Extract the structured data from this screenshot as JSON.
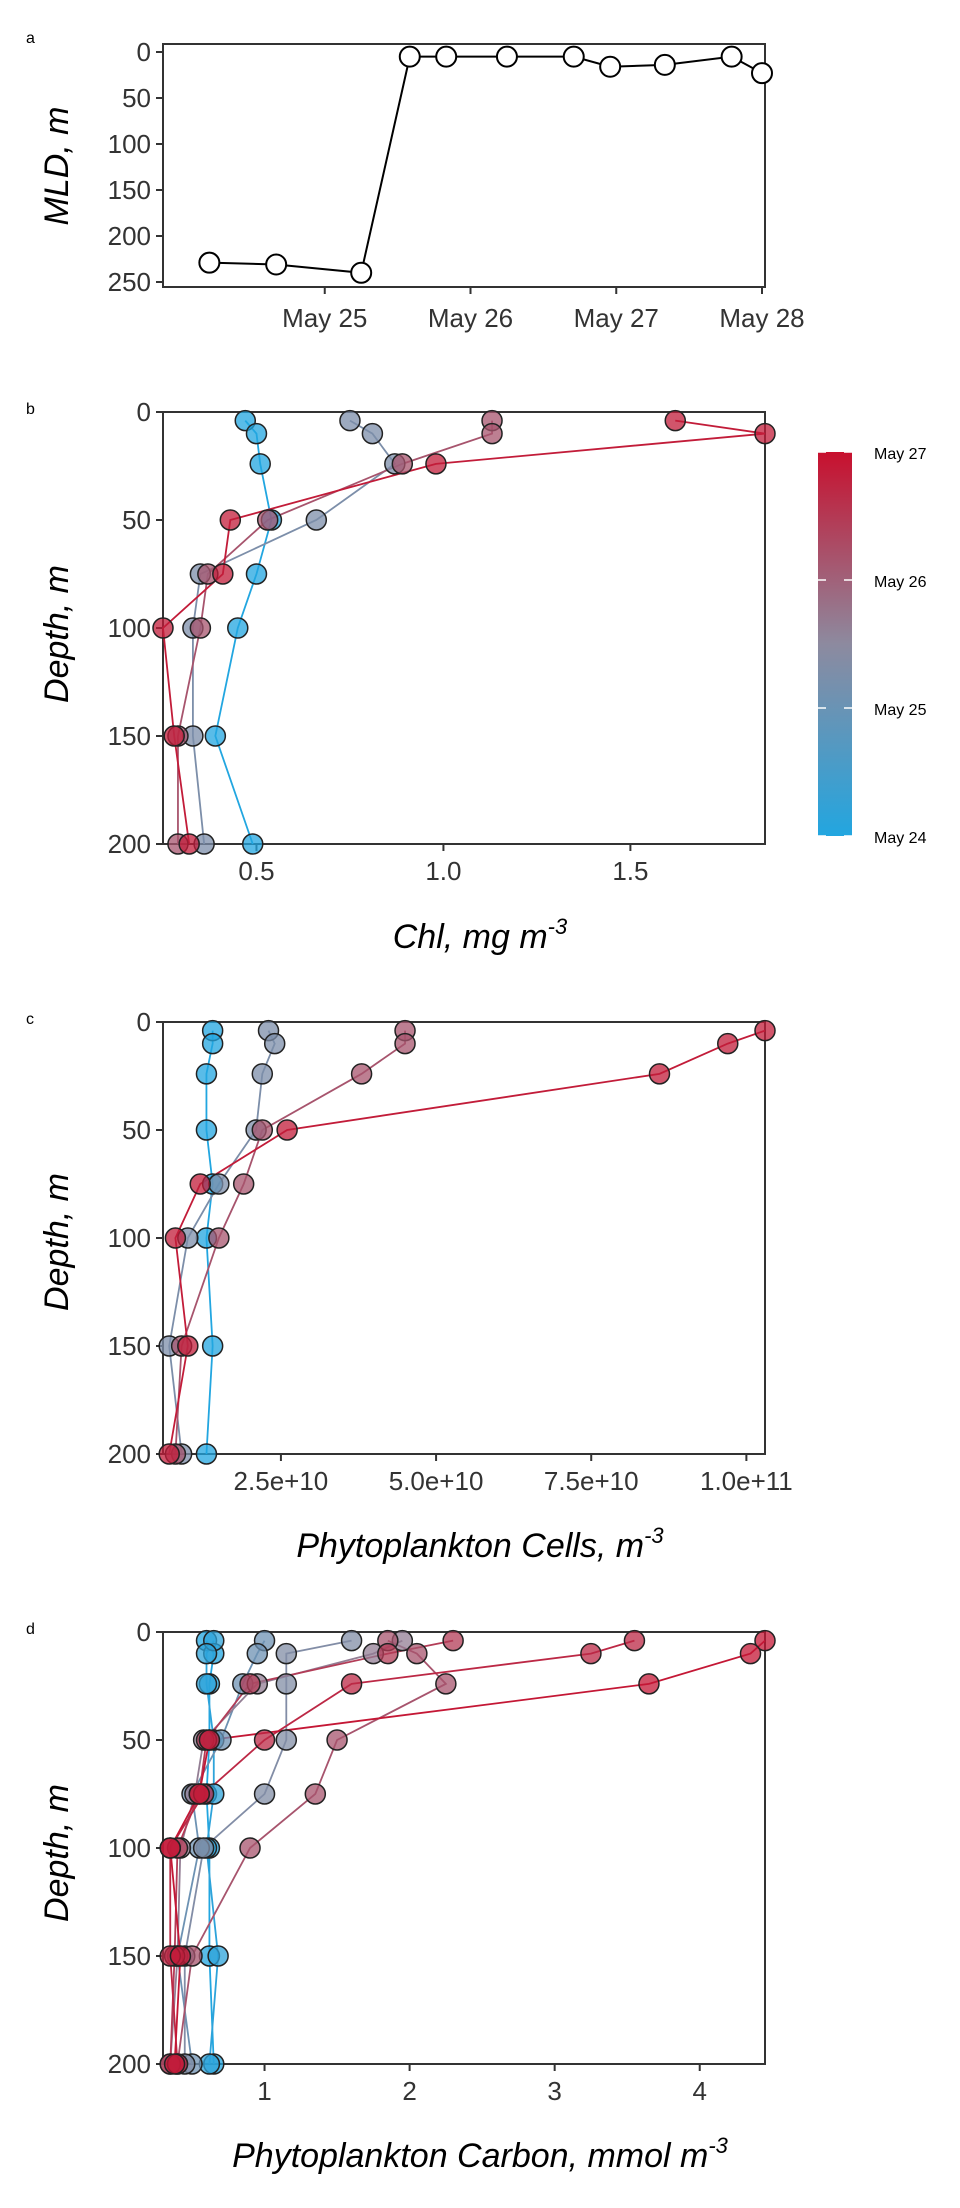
{
  "colors": {
    "early": "#22a6e0",
    "mid": "#8d8a9f",
    "late": "#c8102e",
    "mld_line": "#000000",
    "mld_marker_fill": "#ffffff"
  },
  "colorbar": {
    "labels": [
      "May 27",
      "May 26",
      "May 25",
      "May 24"
    ],
    "range": [
      "May 24",
      "May 27"
    ]
  },
  "chart_data": [
    {
      "panel_label": "a",
      "type": "line",
      "xlabel": "",
      "ylabel": "MLD, m",
      "x_ticks": [
        "May 25",
        "May 26",
        "May 27",
        "May 28"
      ],
      "y_ticks": [
        "0",
        "50",
        "100",
        "150",
        "200",
        "250"
      ],
      "xlim": [
        "2014-05-24 00:00",
        "2014-05-28 00:00"
      ],
      "ylim": [
        0,
        250
      ],
      "y_reversed": true,
      "x_date_ticks": [
        "May 25",
        "May 26",
        "May 27",
        "May 28"
      ],
      "series": [
        {
          "points": [
            [
              "May 24 05:00",
              229
            ],
            [
              "May 24 16:00",
              231
            ],
            [
              "May 25 06:00",
              240
            ],
            [
              "May 25 14:00",
              5
            ],
            [
              "May 25 20:00",
              5
            ],
            [
              "May 26 06:00",
              5
            ],
            [
              "May 26 17:00",
              5
            ],
            [
              "May 26 23:00",
              16
            ],
            [
              "May 27 08:00",
              14
            ],
            [
              "May 27 19:00",
              5
            ],
            [
              "May 28 00:00",
              23
            ]
          ]
        }
      ]
    },
    {
      "panel_label": "b",
      "type": "scatter",
      "xlabel": "Chl, mg m",
      "xlabel_sup": "-3",
      "ylabel": "Depth, m",
      "x_ticks": [
        "0.5",
        "1.0",
        "1.5"
      ],
      "y_ticks": [
        "0",
        "50",
        "100",
        "150",
        "200"
      ],
      "xlim": [
        0.25,
        1.86
      ],
      "ylim": [
        0,
        200
      ],
      "y_reversed": true,
      "series": [
        {
          "t": 0.0,
          "points": [
            [
              0.47,
              4
            ],
            [
              0.5,
              10
            ],
            [
              0.51,
              24
            ],
            [
              0.54,
              50
            ],
            [
              0.5,
              75
            ],
            [
              0.45,
              100
            ],
            [
              0.39,
              150
            ],
            [
              0.49,
              200
            ]
          ]
        },
        {
          "t": 0.42,
          "points": [
            [
              0.75,
              4
            ],
            [
              0.81,
              10
            ],
            [
              0.87,
              24
            ],
            [
              0.66,
              50
            ],
            [
              0.35,
              75
            ],
            [
              0.33,
              100
            ],
            [
              0.33,
              150
            ],
            [
              0.36,
              200
            ]
          ]
        },
        {
          "t": 0.72,
          "points": [
            [
              1.13,
              4
            ],
            [
              1.13,
              10
            ],
            [
              0.89,
              24
            ],
            [
              0.53,
              50
            ],
            [
              0.37,
              75
            ],
            [
              0.35,
              100
            ],
            [
              0.29,
              150
            ],
            [
              0.29,
              200
            ]
          ]
        },
        {
          "t": 0.95,
          "points": [
            [
              1.62,
              4
            ],
            [
              1.86,
              10
            ],
            [
              0.98,
              24
            ],
            [
              0.43,
              50
            ],
            [
              0.41,
              75
            ],
            [
              0.25,
              100
            ],
            [
              0.28,
              150
            ],
            [
              0.32,
              200
            ]
          ]
        }
      ]
    },
    {
      "panel_label": "c",
      "type": "scatter",
      "xlabel": "Phytoplankton Cells, m",
      "xlabel_sup": "-3",
      "ylabel": "Depth, m",
      "x_ticks": [
        "2.5e+10",
        "5.0e+10",
        "7.5e+10",
        "1.0e+11"
      ],
      "x_tick_values": [
        25000000000.0,
        50000000000.0,
        75000000000.0,
        100000000000.0
      ],
      "y_ticks": [
        "0",
        "50",
        "100",
        "150",
        "200"
      ],
      "xlim": [
        6000000000.0,
        103000000000.0
      ],
      "ylim": [
        0,
        200
      ],
      "y_reversed": true,
      "series": [
        {
          "t": 0.0,
          "points": [
            [
              14000000000.0,
              4
            ],
            [
              14000000000.0,
              10
            ],
            [
              13000000000.0,
              24
            ],
            [
              13000000000.0,
              50
            ],
            [
              14000000000.0,
              75
            ],
            [
              13000000000.0,
              100
            ],
            [
              14000000000.0,
              150
            ],
            [
              13000000000.0,
              200
            ]
          ]
        },
        {
          "t": 0.42,
          "points": [
            [
              23000000000.0,
              4
            ],
            [
              24000000000.0,
              10
            ],
            [
              22000000000.0,
              24
            ],
            [
              21000000000.0,
              50
            ],
            [
              15000000000.0,
              75
            ],
            [
              10000000000.0,
              100
            ],
            [
              7000000000.0,
              150
            ],
            [
              9000000000.0,
              200
            ]
          ]
        },
        {
          "t": 0.72,
          "points": [
            [
              45000000000.0,
              4
            ],
            [
              45000000000.0,
              10
            ],
            [
              38000000000.0,
              24
            ],
            [
              22000000000.0,
              50
            ],
            [
              19000000000.0,
              75
            ],
            [
              15000000000.0,
              100
            ],
            [
              9000000000.0,
              150
            ],
            [
              8000000000.0,
              200
            ]
          ]
        },
        {
          "t": 0.95,
          "points": [
            [
              103000000000.0,
              4
            ],
            [
              97000000000.0,
              10
            ],
            [
              86000000000.0,
              24
            ],
            [
              26000000000.0,
              50
            ],
            [
              12000000000.0,
              75
            ],
            [
              8000000000.0,
              100
            ],
            [
              10000000000.0,
              150
            ],
            [
              7000000000.0,
              200
            ]
          ]
        }
      ]
    },
    {
      "panel_label": "d",
      "type": "scatter",
      "xlabel": "Phytoplankton Carbon, mmol m",
      "xlabel_sup": "-3",
      "ylabel": "Depth, m",
      "x_ticks": [
        "1",
        "2",
        "3",
        "4"
      ],
      "y_ticks": [
        "0",
        "50",
        "100",
        "150",
        "200"
      ],
      "xlim": [
        0.3,
        4.45
      ],
      "ylim": [
        0,
        200
      ],
      "y_reversed": true,
      "series": [
        {
          "t": 0.0,
          "points": [
            [
              0.6,
              4
            ],
            [
              0.65,
              10
            ],
            [
              0.62,
              24
            ],
            [
              0.62,
              50
            ],
            [
              0.6,
              75
            ],
            [
              0.62,
              100
            ],
            [
              0.62,
              150
            ],
            [
              0.65,
              200
            ]
          ]
        },
        {
          "t": 0.05,
          "points": [
            [
              0.65,
              4
            ],
            [
              0.6,
              10
            ],
            [
              0.6,
              24
            ],
            [
              0.65,
              50
            ],
            [
              0.65,
              75
            ],
            [
              0.6,
              100
            ],
            [
              0.68,
              150
            ],
            [
              0.62,
              200
            ]
          ]
        },
        {
          "t": 0.35,
          "points": [
            [
              1.0,
              4
            ],
            [
              0.95,
              10
            ],
            [
              0.85,
              24
            ],
            [
              0.7,
              50
            ],
            [
              0.5,
              75
            ],
            [
              0.55,
              100
            ],
            [
              0.4,
              150
            ],
            [
              0.5,
              200
            ]
          ]
        },
        {
          "t": 0.45,
          "points": [
            [
              1.6,
              4
            ],
            [
              1.15,
              10
            ],
            [
              1.15,
              24
            ],
            [
              1.15,
              50
            ],
            [
              1.0,
              75
            ],
            [
              0.58,
              100
            ],
            [
              0.45,
              150
            ],
            [
              0.45,
              200
            ]
          ]
        },
        {
          "t": 0.55,
          "points": [
            [
              1.95,
              4
            ],
            [
              1.75,
              10
            ],
            [
              0.95,
              24
            ],
            [
              0.58,
              50
            ],
            [
              0.52,
              75
            ],
            [
              0.42,
              100
            ],
            [
              0.4,
              150
            ],
            [
              0.35,
              200
            ]
          ]
        },
        {
          "t": 0.72,
          "points": [
            [
              1.85,
              4
            ],
            [
              2.05,
              10
            ],
            [
              2.25,
              24
            ],
            [
              1.5,
              50
            ],
            [
              1.35,
              75
            ],
            [
              0.9,
              100
            ],
            [
              0.5,
              150
            ],
            [
              0.4,
              200
            ]
          ]
        },
        {
          "t": 0.82,
          "points": [
            [
              2.3,
              4
            ],
            [
              1.85,
              10
            ],
            [
              0.9,
              24
            ],
            [
              0.6,
              50
            ],
            [
              0.55,
              75
            ],
            [
              0.4,
              100
            ],
            [
              0.38,
              150
            ],
            [
              0.35,
              200
            ]
          ]
        },
        {
          "t": 0.9,
          "points": [
            [
              3.55,
              4
            ],
            [
              3.25,
              10
            ],
            [
              1.6,
              24
            ],
            [
              1.0,
              50
            ],
            [
              0.58,
              75
            ],
            [
              0.35,
              100
            ],
            [
              0.35,
              150
            ],
            [
              0.4,
              200
            ]
          ]
        },
        {
          "t": 0.97,
          "points": [
            [
              4.45,
              4
            ],
            [
              4.35,
              10
            ],
            [
              3.65,
              24
            ],
            [
              0.62,
              50
            ],
            [
              0.55,
              75
            ],
            [
              0.35,
              100
            ],
            [
              0.42,
              150
            ],
            [
              0.38,
              200
            ]
          ]
        }
      ]
    }
  ]
}
